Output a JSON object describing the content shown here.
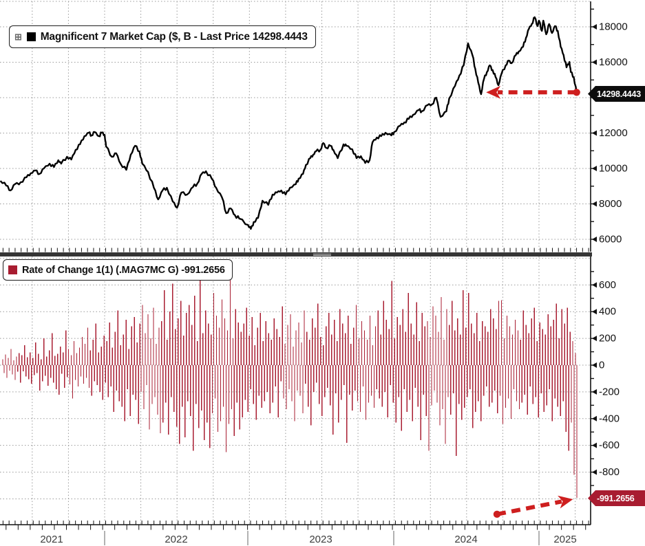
{
  "colors": {
    "line": "#000000",
    "bar": "#A81C30",
    "arrow": "#CE1F1F",
    "grid": "#999999",
    "axis": "#111111",
    "tag_top_bg": "#0D0D0D",
    "tag_bottom_bg": "#A81C30",
    "tag_fg": "#FFFFFF",
    "divider": "#353535",
    "year_label": "#3C3C3C"
  },
  "top_panel": {
    "legend_expander": "⊞",
    "legend_label": "Magnificent 7 Market Cap ($, B - Last Price 14298.4443",
    "tag_text": "14298.4443"
  },
  "bottom_panel": {
    "legend_label": "Rate of Change 1(1) (.MAG7MC G) -991.2656",
    "tag_text": "-991.2656"
  },
  "x_axis": {
    "year_labels": [
      "2021",
      "2022",
      "2023",
      "2024",
      "2025"
    ]
  },
  "annotations": [
    {
      "id": "top-arrow",
      "panel": "top",
      "type": "dashed-arrow",
      "from": {
        "year": 2025.26,
        "value": 14298.4443
      },
      "to": {
        "year": 2024.635,
        "value": 14298.4443
      }
    },
    {
      "id": "bottom-arrow",
      "panel": "bottom",
      "type": "dashed-arrow",
      "from": {
        "year": 2024.71,
        "value": -1115
      },
      "to": {
        "year": 2025.235,
        "value": -1003
      }
    }
  ],
  "chart_data": [
    {
      "type": "line",
      "name": "Magnificent 7 Market Cap",
      "units": "$, B",
      "last_price": 14298.4443,
      "x_unit": "decimal_year",
      "points": [
        [
          2021.28,
          9300
        ],
        [
          2021.32,
          9030
        ],
        [
          2021.35,
          8760
        ],
        [
          2021.38,
          9110
        ],
        [
          2021.42,
          9220
        ],
        [
          2021.46,
          9500
        ],
        [
          2021.49,
          9730
        ],
        [
          2021.52,
          9885
        ],
        [
          2021.55,
          9690
        ],
        [
          2021.58,
          10000
        ],
        [
          2021.62,
          10270
        ],
        [
          2021.65,
          10080
        ],
        [
          2021.68,
          10465
        ],
        [
          2021.7,
          10270
        ],
        [
          2021.74,
          10660
        ],
        [
          2021.77,
          10505
        ],
        [
          2021.8,
          11050
        ],
        [
          2021.83,
          11360
        ],
        [
          2021.86,
          11825
        ],
        [
          2021.89,
          12020
        ],
        [
          2021.91,
          11865
        ],
        [
          2021.93,
          12060
        ],
        [
          2021.96,
          11825
        ],
        [
          2021.98,
          12020
        ],
        [
          2022.0,
          11900
        ],
        [
          2022.01,
          11240
        ],
        [
          2022.05,
          10660
        ],
        [
          2022.08,
          10855
        ],
        [
          2022.11,
          10270
        ],
        [
          2022.15,
          9920
        ],
        [
          2022.18,
          10775
        ],
        [
          2022.21,
          11280
        ],
        [
          2022.24,
          10970
        ],
        [
          2022.26,
          10270
        ],
        [
          2022.3,
          9805
        ],
        [
          2022.34,
          8910
        ],
        [
          2022.37,
          8250
        ],
        [
          2022.4,
          8755
        ],
        [
          2022.43,
          8910
        ],
        [
          2022.47,
          8135
        ],
        [
          2022.5,
          7785
        ],
        [
          2022.53,
          8640
        ],
        [
          2022.57,
          8525
        ],
        [
          2022.61,
          8950
        ],
        [
          2022.64,
          9145
        ],
        [
          2022.67,
          9690
        ],
        [
          2022.7,
          9845
        ],
        [
          2022.74,
          9420
        ],
        [
          2022.77,
          8910
        ],
        [
          2022.81,
          8370
        ],
        [
          2022.84,
          7475
        ],
        [
          2022.87,
          7745
        ],
        [
          2022.9,
          7360
        ],
        [
          2022.93,
          7165
        ],
        [
          2022.99,
          6815
        ],
        [
          2023.01,
          6585
        ],
        [
          2023.03,
          6975
        ],
        [
          2023.06,
          7205
        ],
        [
          2023.09,
          8175
        ],
        [
          2023.13,
          7945
        ],
        [
          2023.16,
          8525
        ],
        [
          2023.19,
          8640
        ],
        [
          2023.22,
          8755
        ],
        [
          2023.25,
          8525
        ],
        [
          2023.28,
          8910
        ],
        [
          2023.32,
          9105
        ],
        [
          2023.34,
          9420
        ],
        [
          2023.37,
          9690
        ],
        [
          2023.39,
          10195
        ],
        [
          2023.42,
          10580
        ],
        [
          2023.44,
          10775
        ],
        [
          2023.46,
          10970
        ],
        [
          2023.49,
          11050
        ],
        [
          2023.51,
          11435
        ],
        [
          2023.53,
          11165
        ],
        [
          2023.56,
          11280
        ],
        [
          2023.58,
          11050
        ],
        [
          2023.61,
          10580
        ],
        [
          2023.65,
          11360
        ],
        [
          2023.67,
          11280
        ],
        [
          2023.71,
          11085
        ],
        [
          2023.74,
          10580
        ],
        [
          2023.77,
          10695
        ],
        [
          2023.8,
          10310
        ],
        [
          2023.83,
          10465
        ],
        [
          2023.85,
          11475
        ],
        [
          2023.88,
          11745
        ],
        [
          2023.91,
          11825
        ],
        [
          2023.94,
          12020
        ],
        [
          2023.98,
          11865
        ],
        [
          2024.0,
          12060
        ],
        [
          2024.04,
          12410
        ],
        [
          2024.07,
          12605
        ],
        [
          2024.1,
          12800
        ],
        [
          2024.13,
          13030
        ],
        [
          2024.17,
          13300
        ],
        [
          2024.19,
          13225
        ],
        [
          2024.23,
          13575
        ],
        [
          2024.26,
          13615
        ],
        [
          2024.29,
          14000
        ],
        [
          2024.32,
          12915
        ],
        [
          2024.36,
          13225
        ],
        [
          2024.38,
          13960
        ],
        [
          2024.42,
          14660
        ],
        [
          2024.45,
          15245
        ],
        [
          2024.48,
          15825
        ],
        [
          2024.51,
          17070
        ],
        [
          2024.54,
          16410
        ],
        [
          2024.56,
          15630
        ],
        [
          2024.58,
          14855
        ],
        [
          2024.6,
          14195
        ],
        [
          2024.62,
          15050
        ],
        [
          2024.64,
          15440
        ],
        [
          2024.66,
          15825
        ],
        [
          2024.68,
          15555
        ],
        [
          2024.7,
          15165
        ],
        [
          2024.72,
          14700
        ],
        [
          2024.74,
          15320
        ],
        [
          2024.77,
          15825
        ],
        [
          2024.79,
          16095
        ],
        [
          2024.81,
          15940
        ],
        [
          2024.84,
          16405
        ],
        [
          2024.86,
          16600
        ],
        [
          2024.89,
          16875
        ],
        [
          2024.91,
          17380
        ],
        [
          2024.93,
          17885
        ],
        [
          2024.95,
          18155
        ],
        [
          2024.97,
          18545
        ],
        [
          2024.99,
          18040
        ],
        [
          2025.0,
          18350
        ],
        [
          2025.02,
          17770
        ],
        [
          2025.03,
          18350
        ],
        [
          2025.05,
          17575
        ],
        [
          2025.07,
          18155
        ],
        [
          2025.09,
          17650
        ],
        [
          2025.11,
          18040
        ],
        [
          2025.13,
          17770
        ],
        [
          2025.15,
          16875
        ],
        [
          2025.17,
          16410
        ],
        [
          2025.19,
          15710
        ],
        [
          2025.21,
          16020
        ],
        [
          2025.22,
          15440
        ],
        [
          2025.24,
          15165
        ],
        [
          2025.26,
          14298.4443
        ]
      ],
      "y_axis": {
        "major_ticks": [
          18000,
          16000,
          14000,
          12000,
          10000,
          8000,
          6000
        ],
        "minor_ticks": [
          19000,
          17000,
          15000,
          13000,
          11000,
          9000,
          7000
        ],
        "gridlines": [
          18000,
          16000,
          14000,
          12000,
          10000,
          8000,
          6000
        ],
        "visible_range": [
          5300,
          19400
        ]
      },
      "x_axis": {
        "range": [
          2021.28,
          2025.27
        ],
        "year_boundaries": [
          2022,
          2023,
          2024,
          2025
        ],
        "grid": "quarterly"
      }
    },
    {
      "type": "bar",
      "name": "Rate of Change 1(1) (.MAG7MC G)",
      "last_value": -991.2656,
      "x_range": [
        2021.28,
        2025.27
      ],
      "values": [
        45,
        -60,
        80,
        -95,
        55,
        -40,
        120,
        -70,
        35,
        -110,
        65,
        -50,
        90,
        -130,
        75,
        -45,
        150,
        -85,
        60,
        -105,
        95,
        -140,
        55,
        -75,
        170,
        -60,
        85,
        -190,
        45,
        -120,
        200,
        -80,
        65,
        -155,
        110,
        -95,
        240,
        -130,
        70,
        -180,
        85,
        -220,
        140,
        -65,
        95,
        -170,
        260,
        -90,
        120,
        -145,
        75,
        -250,
        180,
        -110,
        90,
        -160,
        130,
        -85,
        210,
        -140,
        160,
        -95,
        280,
        -170,
        110,
        -230,
        190,
        -120,
        310,
        -150,
        95,
        -200,
        140,
        -260,
        220,
        -130,
        180,
        -240,
        320,
        -160,
        130,
        -350,
        250,
        -190,
        410,
        -270,
        150,
        -310,
        230,
        -420,
        340,
        -180,
        120,
        -380,
        290,
        -220,
        360,
        -260,
        170,
        -440,
        310,
        -200,
        450,
        -330,
        240,
        -150,
        380,
        -480,
        200,
        -290,
        430,
        -240,
        160,
        -370,
        280,
        -510,
        330,
        -430,
        560,
        -280,
        190,
        -520,
        400,
        -240,
        610,
        -350,
        270,
        -460,
        350,
        -590,
        480,
        -310,
        220,
        -540,
        390,
        -270,
        450,
        -380,
        300,
        -640,
        520,
        -290,
        180,
        -470,
        660,
        -340,
        240,
        -560,
        410,
        -430,
        310,
        -620,
        230,
        -360,
        540,
        -250,
        370,
        -500,
        280,
        -420,
        490,
        -310,
        350,
        -650,
        260,
        -440,
        655,
        -330,
        200,
        -530,
        420,
        -280,
        320,
        -480,
        250,
        -390,
        310,
        -260,
        430,
        -350,
        220,
        -180,
        360,
        -290,
        150,
        -410,
        280,
        -230,
        390,
        -320,
        180,
        -270,
        330,
        -200,
        240,
        -360,
        190,
        -280,
        350,
        -160,
        270,
        -390,
        210,
        -120,
        440,
        -250,
        160,
        -330,
        300,
        -180,
        380,
        -270,
        140,
        -420,
        260,
        -190,
        320,
        -230,
        170,
        -360,
        410,
        -140,
        250,
        -310,
        190,
        -450,
        350,
        -200,
        280,
        -130,
        460,
        -290,
        210,
        -380,
        150,
        -240,
        290,
        -170,
        390,
        -300,
        230,
        -520,
        340,
        -210,
        180,
        -430,
        420,
        -260,
        310,
        -150,
        240,
        -580,
        370,
        -220,
        160,
        -340,
        280,
        -190,
        450,
        -270,
        200,
        -350,
        330,
        -160,
        260,
        -410,
        190,
        -280,
        370,
        -230,
        150,
        -320,
        290,
        -180,
        410,
        -250,
        230,
        -310,
        480,
        -200,
        340,
        -390,
        270,
        -150,
        630,
        -280,
        200,
        -430,
        360,
        -240,
        300,
        -490,
        420,
        -180,
        250,
        -350,
        540,
        -260,
        310,
        -420,
        230,
        -170,
        470,
        -310,
        180,
        -560,
        390,
        -220,
        290,
        -380,
        330,
        -640,
        210,
        -300,
        440,
        -190,
        370,
        -280,
        250,
        -450,
        510,
        -330,
        190,
        -590,
        420,
        -240,
        300,
        -370,
        480,
        -210,
        260,
        -680,
        350,
        -290,
        230,
        -410,
        560,
        -320,
        280,
        -240,
        540,
        -180,
        310,
        -470,
        240,
        -350,
        390,
        -270,
        180,
        -420,
        330,
        -230,
        290,
        -160,
        250,
        -310,
        420,
        -280,
        350,
        -190,
        270,
        -360,
        480,
        -230,
        485,
        -440,
        200,
        -320,
        370,
        -250,
        290,
        -400,
        230,
        -180,
        340,
        -270,
        260,
        -330,
        190,
        -280,
        410,
        -220,
        300,
        -370,
        240,
        -160,
        350,
        -290,
        430,
        -240,
        180,
        -390,
        320,
        -210,
        270,
        -350,
        230,
        -300,
        380,
        -180,
        290,
        -420,
        340,
        -250,
        460,
        -310,
        200,
        -380,
        420,
        -270,
        310,
        -500,
        430,
        -640,
        250,
        -430,
        180,
        -820,
        90,
        -991.2656
      ],
      "y_axis": {
        "major_ticks": [
          600,
          400,
          200,
          0,
          -200,
          -400,
          -600,
          -800
        ],
        "minor_ticks": [
          700,
          500,
          300,
          100,
          -100,
          -300,
          -500,
          -700,
          -900
        ],
        "gridlines": [
          800,
          600,
          400,
          200,
          0,
          -200,
          -400,
          -600,
          -800,
          -1000
        ],
        "visible_range": [
          -1200,
          810
        ]
      }
    }
  ]
}
